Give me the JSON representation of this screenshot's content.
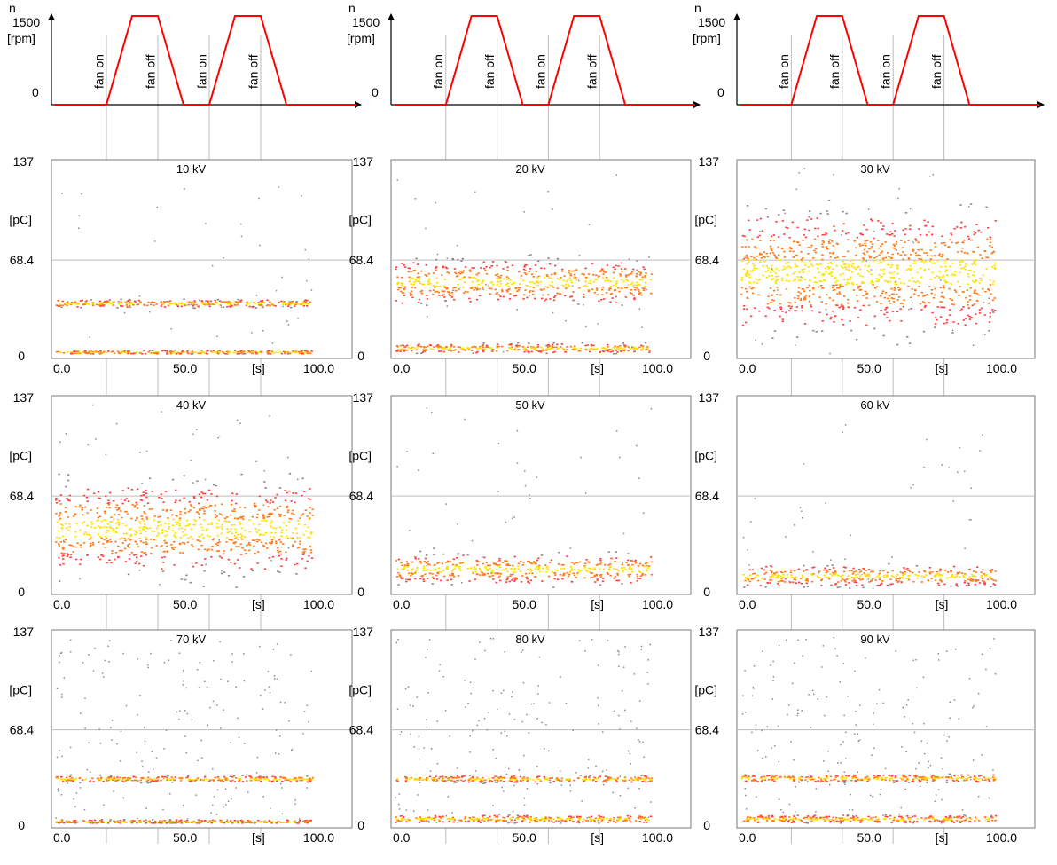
{
  "figure": {
    "speed_profile": {
      "n_label": "n",
      "y_top": "1500",
      "y_unit": "[rpm]",
      "y_zero": "0",
      "labels": [
        "fan on",
        "fan off",
        "fan on",
        "fan off"
      ],
      "max_rpm": 1500,
      "profile_line_color": "#ff0000"
    },
    "x_ticks": [
      "0.0",
      "50.0",
      "100.0"
    ],
    "x_unit": "[s]",
    "y_ticks": [
      "137",
      "68.4",
      "0"
    ],
    "y_unit": "[pC]",
    "fan_event_times_s": [
      20,
      40,
      60,
      80
    ],
    "colors": {
      "sparse": "#8a8a8a",
      "low": "#ff4040",
      "mid": "#ff7a1a",
      "high": "#ffe000",
      "grid": "#bdbdbd"
    },
    "panels": [
      {
        "voltage": "10 kV",
        "band_pC": [
          [
            34,
            40
          ],
          [
            0,
            2
          ]
        ]
      },
      {
        "voltage": "20 kV",
        "band_pC": [
          [
            30,
            75
          ],
          [
            0,
            8
          ]
        ]
      },
      {
        "voltage": "30 kV",
        "band_pC": [
          [
            0,
            120
          ]
        ]
      },
      {
        "voltage": "40 kV",
        "band_pC": [
          [
            0,
            90
          ]
        ]
      },
      {
        "voltage": "50 kV",
        "band_pC": [
          [
            0,
            30
          ]
        ]
      },
      {
        "voltage": "60 kV",
        "band_pC": [
          [
            0,
            20
          ]
        ]
      },
      {
        "voltage": "70 kV",
        "band_pC": [
          [
            30,
            35
          ],
          [
            0,
            2
          ]
        ]
      },
      {
        "voltage": "80 kV",
        "band_pC": [
          [
            30,
            35
          ],
          [
            0,
            6
          ]
        ]
      },
      {
        "voltage": "90 kV",
        "band_pC": [
          [
            30,
            36
          ],
          [
            0,
            6
          ]
        ]
      }
    ]
  },
  "chart_data": [
    {
      "type": "line",
      "x": [
        0,
        20,
        30,
        40,
        50,
        60,
        70,
        80,
        90,
        100
      ],
      "values": [
        0,
        0,
        1500,
        1500,
        0,
        0,
        1500,
        1500,
        0,
        0
      ]
    },
    {
      "type": "heatmap",
      "title": "10 kV",
      "x_range_s": [
        0,
        100
      ],
      "ylim": [
        0,
        137
      ],
      "yticks": [
        0,
        68.4,
        137
      ],
      "xticks": [
        0,
        50,
        100
      ],
      "bands": [
        {
          "pC_low": 34,
          "pC_high": 40
        },
        {
          "pC_low": 0,
          "pC_high": 2
        }
      ]
    },
    {
      "type": "heatmap",
      "title": "20 kV",
      "x_range_s": [
        0,
        100
      ],
      "ylim": [
        0,
        137
      ],
      "yticks": [
        0,
        68.4,
        137
      ],
      "xticks": [
        0,
        50,
        100
      ],
      "bands": [
        {
          "pC_low": 30,
          "pC_high": 75
        },
        {
          "pC_low": 0,
          "pC_high": 8
        }
      ]
    },
    {
      "type": "heatmap",
      "title": "30 kV",
      "x_range_s": [
        0,
        100
      ],
      "ylim": [
        0,
        137
      ],
      "yticks": [
        0,
        68.4,
        137
      ],
      "xticks": [
        0,
        50,
        100
      ],
      "bands": [
        {
          "pC_low": 0,
          "pC_high": 120
        }
      ]
    },
    {
      "type": "heatmap",
      "title": "40 kV",
      "x_range_s": [
        0,
        100
      ],
      "ylim": [
        0,
        137
      ],
      "yticks": [
        0,
        68.4,
        137
      ],
      "xticks": [
        0,
        50,
        100
      ],
      "bands": [
        {
          "pC_low": 0,
          "pC_high": 90
        }
      ]
    },
    {
      "type": "heatmap",
      "title": "50 kV",
      "x_range_s": [
        0,
        100
      ],
      "ylim": [
        0,
        137
      ],
      "yticks": [
        0,
        68.4,
        137
      ],
      "xticks": [
        0,
        50,
        100
      ],
      "bands": [
        {
          "pC_low": 0,
          "pC_high": 30
        }
      ]
    },
    {
      "type": "heatmap",
      "title": "60 kV",
      "x_range_s": [
        0,
        100
      ],
      "ylim": [
        0,
        137
      ],
      "yticks": [
        0,
        68.4,
        137
      ],
      "xticks": [
        0,
        50,
        100
      ],
      "bands": [
        {
          "pC_low": 0,
          "pC_high": 20
        }
      ]
    },
    {
      "type": "heatmap",
      "title": "70 kV",
      "x_range_s": [
        0,
        100
      ],
      "ylim": [
        0,
        137
      ],
      "yticks": [
        0,
        68.4,
        137
      ],
      "xticks": [
        0,
        50,
        100
      ],
      "bands": [
        {
          "pC_low": 30,
          "pC_high": 35
        },
        {
          "pC_low": 0,
          "pC_high": 2
        }
      ]
    },
    {
      "type": "heatmap",
      "title": "80 kV",
      "x_range_s": [
        0,
        100
      ],
      "ylim": [
        0,
        137
      ],
      "yticks": [
        0,
        68.4,
        137
      ],
      "xticks": [
        0,
        50,
        100
      ],
      "bands": [
        {
          "pC_low": 30,
          "pC_high": 35
        },
        {
          "pC_low": 0,
          "pC_high": 6
        }
      ]
    },
    {
      "type": "heatmap",
      "title": "90 kV",
      "x_range_s": [
        0,
        100
      ],
      "ylim": [
        0,
        137
      ],
      "yticks": [
        0,
        68.4,
        137
      ],
      "xticks": [
        0,
        50,
        100
      ],
      "bands": [
        {
          "pC_low": 30,
          "pC_high": 36
        },
        {
          "pC_low": 0,
          "pC_high": 6
        }
      ]
    }
  ]
}
